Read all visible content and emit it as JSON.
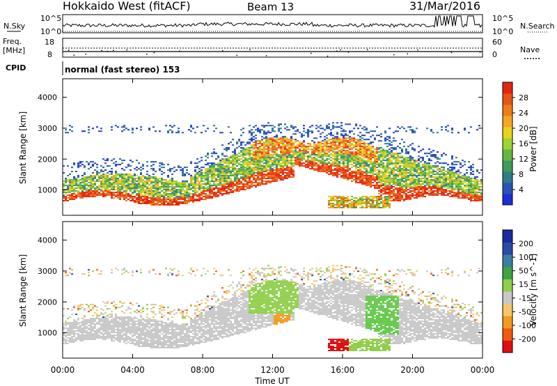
{
  "header": {
    "radar": "Hokkaido West (fitACF)",
    "beam": "Beam 13",
    "date": "31/Mar/2016"
  },
  "top_panels": {
    "nsky_label": "N.Sky",
    "nsky_ticks": [
      "10^5",
      "10^0"
    ],
    "nsearch_label": "N.Search",
    "nsearch_ticks": [
      "10^5",
      "10^0"
    ],
    "freq_label_1": "Freq.",
    "freq_label_2": "[MHz]",
    "freq_ticks": [
      "18",
      "8"
    ],
    "nave_label": "Nave",
    "nave_ticks": [
      "60",
      "0"
    ],
    "cpid_label": "CPID",
    "cpid_text": "normal (fast stereo) 153"
  },
  "colors": {
    "power_scale": [
      "#1d2fd6",
      "#2a54b8",
      "#2f7d86",
      "#3f9a5c",
      "#64b83e",
      "#9ed433",
      "#e8d21c",
      "#f5a623",
      "#f07d18",
      "#ea5513",
      "#e3260f"
    ],
    "velocity_scale": [
      "#e01010",
      "#f05a12",
      "#f59a1d",
      "#f5c76a",
      "#c8c8c8",
      "#8fcf4a",
      "#3fa33f",
      "#3a7fa0",
      "#2a4aa8",
      "#1a2aa0"
    ]
  },
  "chart_data": [
    {
      "type": "heatmap",
      "title": "Power",
      "ylabel": "Slant Range [km]",
      "ylim": [
        180,
        4600
      ],
      "yticks": [
        "1000",
        "2000",
        "3000",
        "4000"
      ],
      "xlim": [
        "00:00",
        "24:00"
      ],
      "colorbar_label": "Power [dB]",
      "colorbar_ticks": [
        "4",
        "8",
        "12",
        "16",
        "20",
        "24",
        "28"
      ]
    },
    {
      "type": "heatmap",
      "title": "Velocity",
      "ylabel": "Slant Range [km]",
      "ylim": [
        180,
        4600
      ],
      "yticks": [
        "1000",
        "2000",
        "3000",
        "4000"
      ],
      "xlim": [
        "00:00",
        "24:00"
      ],
      "xticks": [
        "00:00",
        "04:00",
        "08:00",
        "12:00",
        "16:00",
        "20:00",
        "00:00"
      ],
      "xlabel": "Time UT",
      "colorbar_label": "Velocity [m s^-1]",
      "colorbar_ticks": [
        "200",
        "100",
        "50",
        "15",
        "-15",
        "-50",
        "-100",
        "-200"
      ]
    }
  ]
}
